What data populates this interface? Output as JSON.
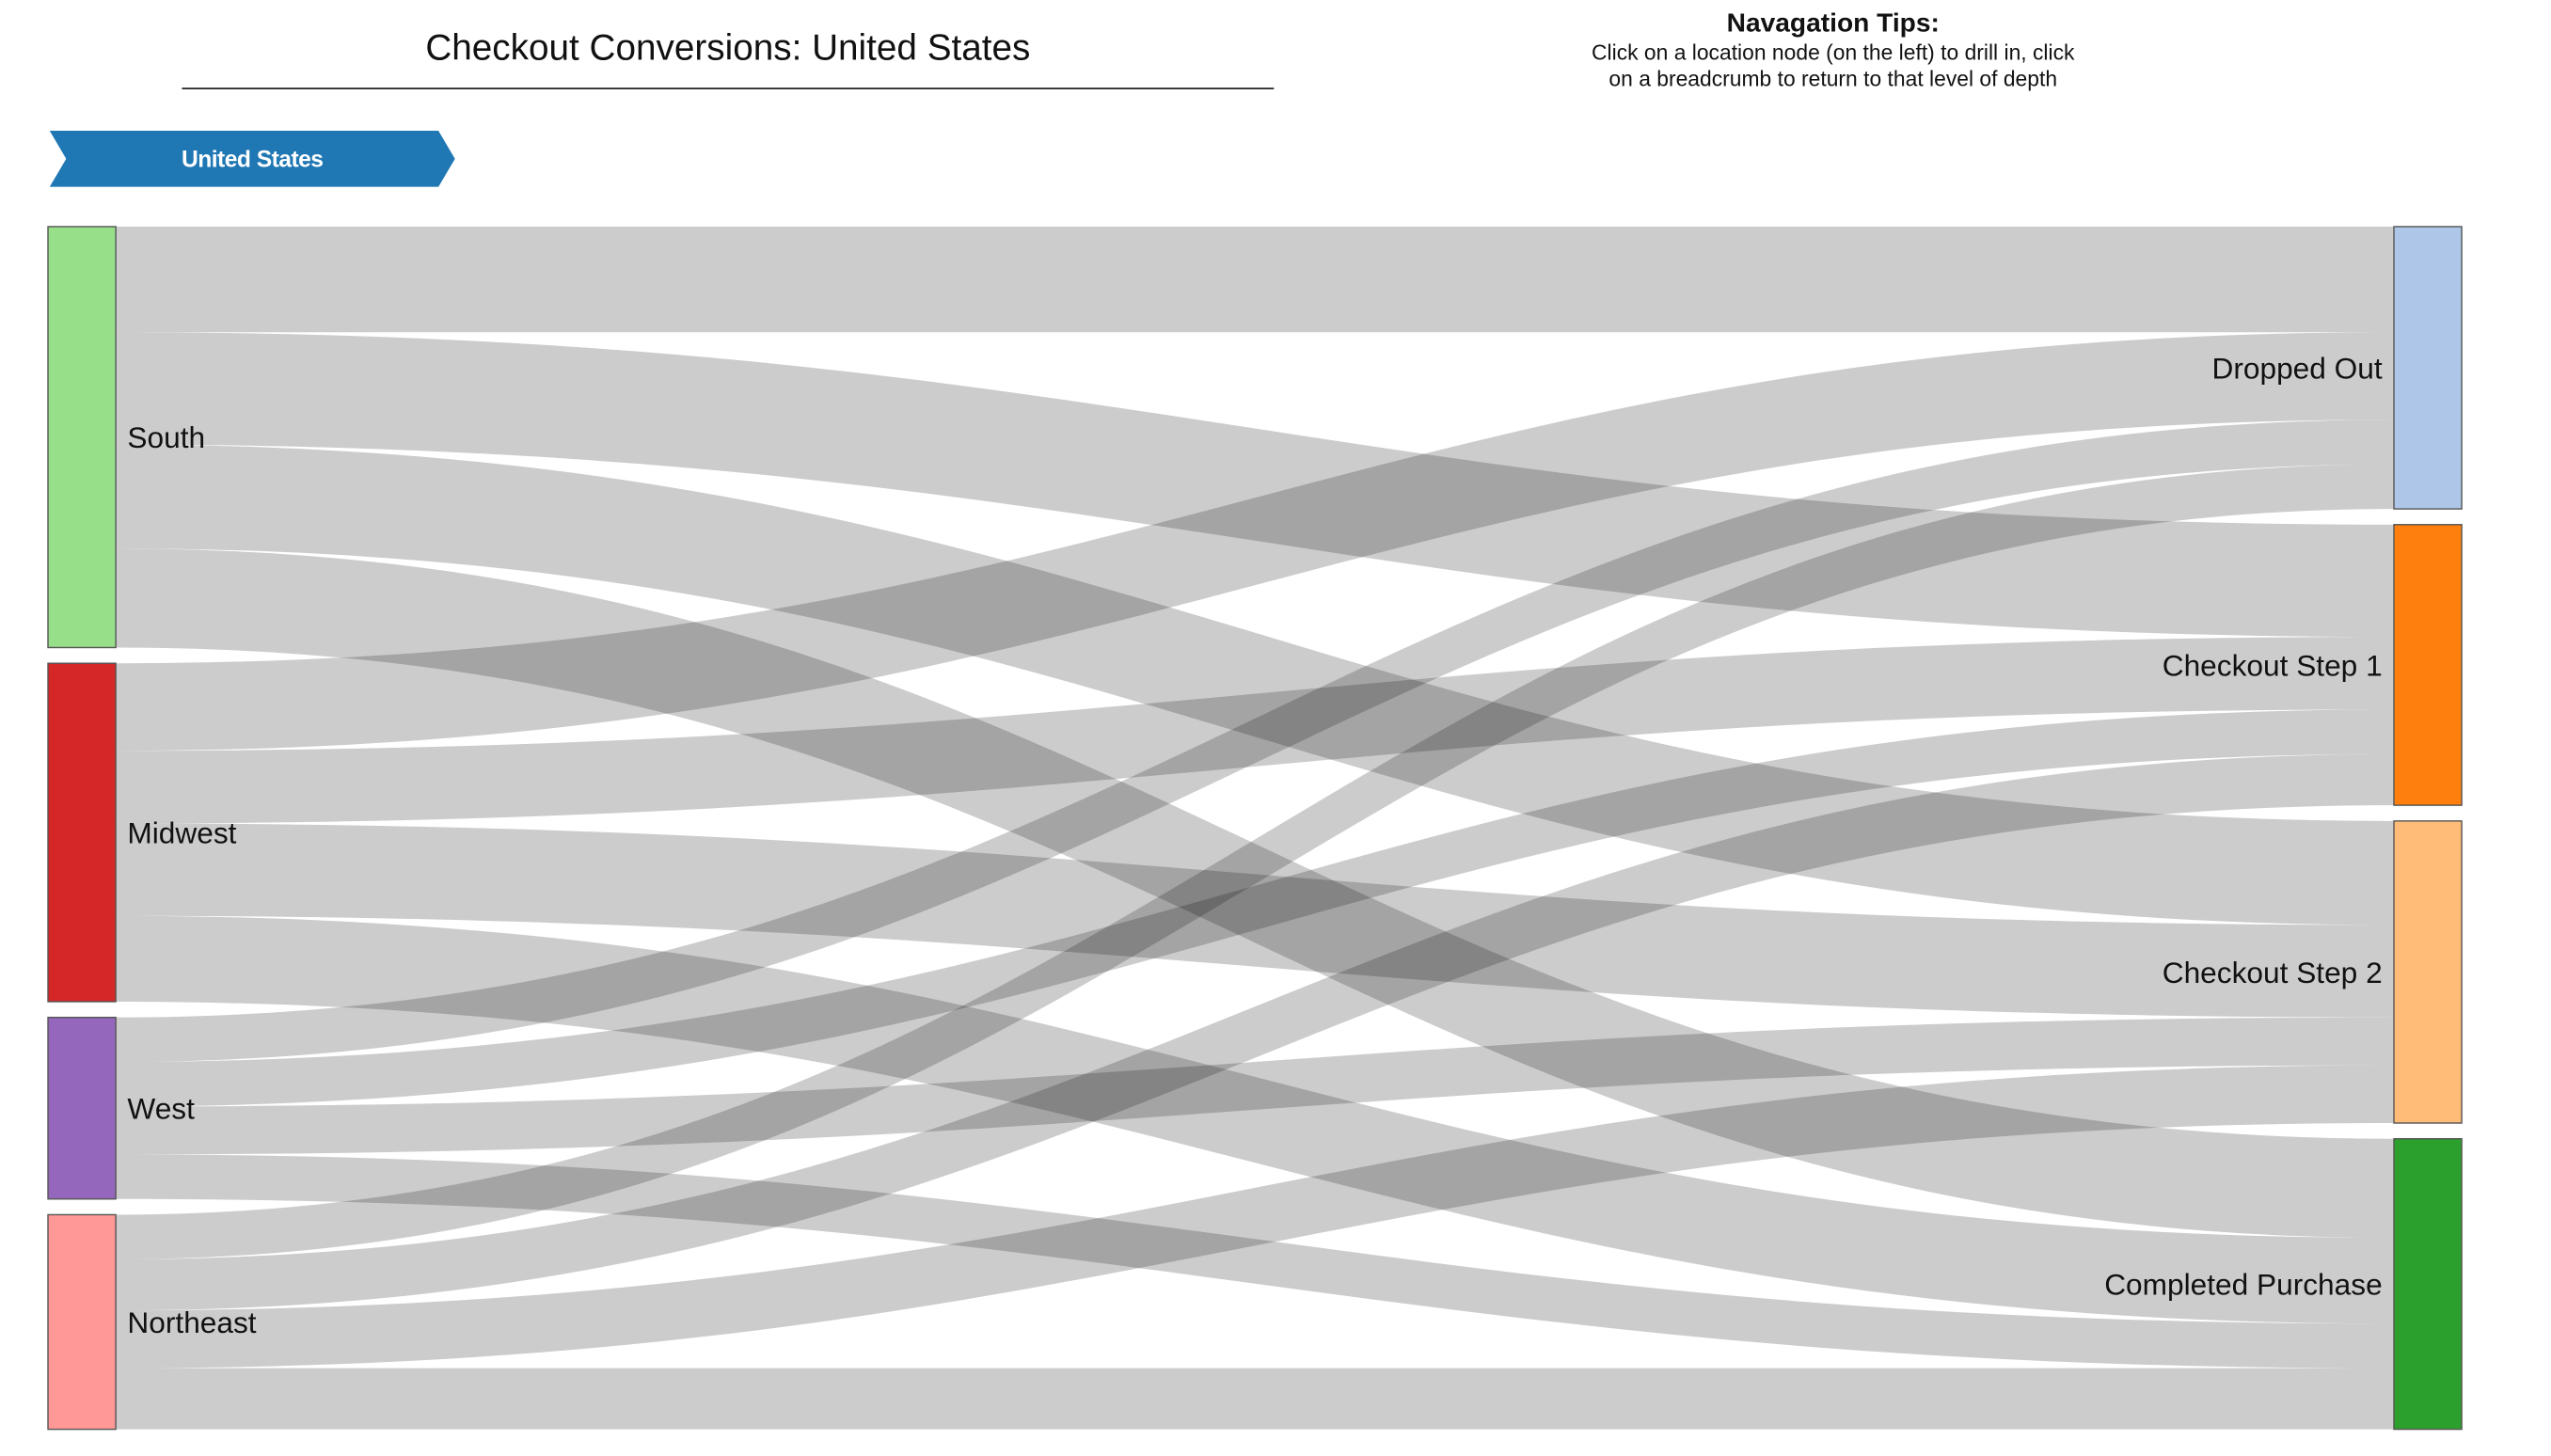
{
  "title": "Checkout Conversions: United States",
  "tips": {
    "heading": "Navagation Tips:",
    "line1": "Click on a location node (on the left) to drill in, click",
    "line2": "on a breadcrumb to return to that level of depth"
  },
  "breadcrumb": {
    "label": "United States",
    "color": "#1f77b4"
  },
  "chart_data": {
    "type": "sankey",
    "sources": [
      {
        "name": "South",
        "color": "#98df8a"
      },
      {
        "name": "Midwest",
        "color": "#d62728"
      },
      {
        "name": "West",
        "color": "#9467bd"
      },
      {
        "name": "Northeast",
        "color": "#ff9896"
      }
    ],
    "targets": [
      {
        "name": "Dropped Out",
        "color": "#aec7e8"
      },
      {
        "name": "Checkout Step 1",
        "color": "#ff7f0e"
      },
      {
        "name": "Checkout Step 2",
        "color": "#ffbb78"
      },
      {
        "name": "Completed Purchase",
        "color": "#2ca02c"
      }
    ],
    "links": [
      {
        "source": "South",
        "target": "Dropped Out",
        "value": 64
      },
      {
        "source": "South",
        "target": "Checkout Step 1",
        "value": 68
      },
      {
        "source": "South",
        "target": "Checkout Step 2",
        "value": 63
      },
      {
        "source": "South",
        "target": "Completed Purchase",
        "value": 60
      },
      {
        "source": "Midwest",
        "target": "Dropped Out",
        "value": 53
      },
      {
        "source": "Midwest",
        "target": "Checkout Step 1",
        "value": 44
      },
      {
        "source": "Midwest",
        "target": "Checkout Step 2",
        "value": 56
      },
      {
        "source": "Midwest",
        "target": "Completed Purchase",
        "value": 52
      },
      {
        "source": "West",
        "target": "Dropped Out",
        "value": 27
      },
      {
        "source": "West",
        "target": "Checkout Step 1",
        "value": 27
      },
      {
        "source": "West",
        "target": "Checkout Step 2",
        "value": 29
      },
      {
        "source": "West",
        "target": "Completed Purchase",
        "value": 27
      },
      {
        "source": "Northeast",
        "target": "Dropped Out",
        "value": 27
      },
      {
        "source": "Northeast",
        "target": "Checkout Step 1",
        "value": 31
      },
      {
        "source": "Northeast",
        "target": "Checkout Step 2",
        "value": 35
      },
      {
        "source": "Northeast",
        "target": "Completed Purchase",
        "value": 37
      }
    ]
  }
}
